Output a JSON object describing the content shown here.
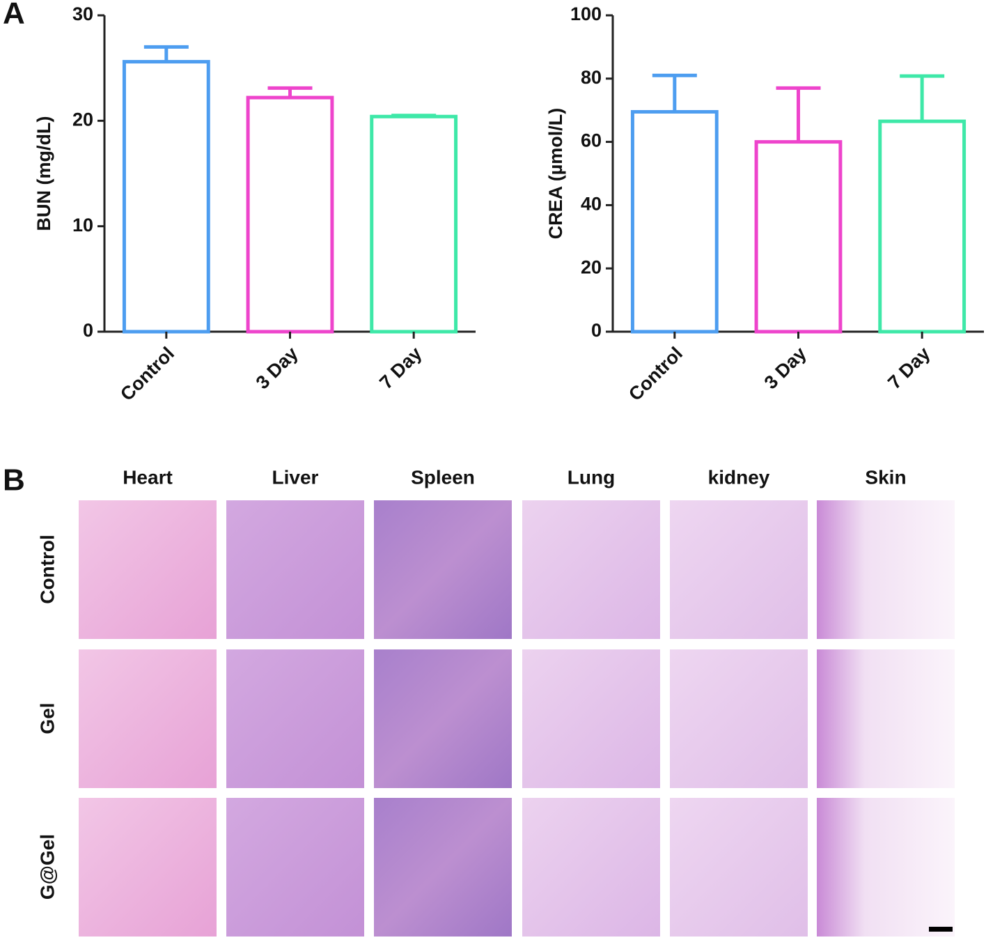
{
  "panels": [
    "A",
    "B"
  ],
  "chart_data": [
    {
      "type": "bar",
      "ylabel": "BUN (mg/dL)",
      "categories": [
        "Control",
        "3 Day",
        "7 Day"
      ],
      "values": [
        25.6,
        22.2,
        20.4
      ],
      "errors": [
        1.4,
        0.9,
        0.1
      ],
      "colors": [
        "#4d9df0",
        "#ee44cc",
        "#3ee8a8"
      ],
      "ylim": [
        0,
        30
      ],
      "yticks": [
        0,
        10,
        20,
        30
      ]
    },
    {
      "type": "bar",
      "ylabel": "CREA (µmol/L)",
      "categories": [
        "Control",
        "3 Day",
        "7 Day"
      ],
      "values": [
        69.5,
        60,
        66.5
      ],
      "errors": [
        11.5,
        17,
        14.3
      ],
      "colors": [
        "#4d9df0",
        "#ee44cc",
        "#3ee8a8"
      ],
      "ylim": [
        0,
        100
      ],
      "yticks": [
        0,
        20,
        40,
        60,
        80,
        100
      ]
    }
  ],
  "histology": {
    "columns": [
      "Heart",
      "Liver",
      "Spleen",
      "Lung",
      "kidney",
      "Skin"
    ],
    "rows": [
      "Control",
      "Gel",
      "G@Gel"
    ]
  }
}
